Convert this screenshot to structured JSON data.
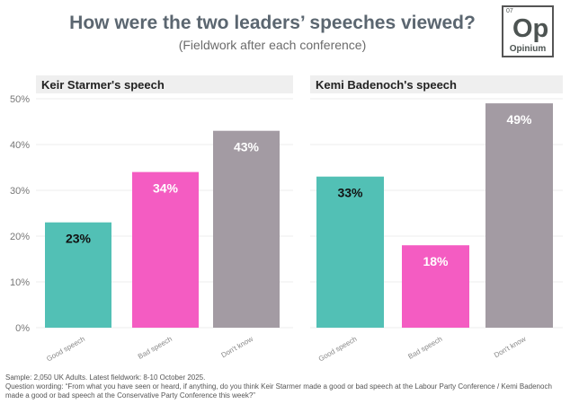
{
  "title": "How were the two leaders’ speeches viewed?",
  "subtitle": "(Fieldwork after each conference)",
  "logo": {
    "number": "07",
    "mark": "Op",
    "name": "Opinium"
  },
  "footer": {
    "sample": "Sample: 2,050 UK Adults. Latest fieldwork: 8-10 October 2025.",
    "question": "Question wording: “From what you have seen or heard, if anything, do you think Keir Starmer made a good or bad speech at the Labour Party Conference / Kemi Badenoch made a good or bad speech at the Conservative Party Conference this week?”"
  },
  "chart_data": [
    {
      "type": "bar",
      "title": "Keir Starmer's speech",
      "categories": [
        "Good speech",
        "Bad speech",
        "Don't know"
      ],
      "values": [
        23,
        34,
        43
      ],
      "data_labels": [
        "23%",
        "34%",
        "43%"
      ],
      "colors": [
        "#52c0b5",
        "#f45cc2",
        "#a39ba3"
      ],
      "ylim": [
        0,
        50
      ],
      "yticks": [
        "0%",
        "10%",
        "20%",
        "30%",
        "40%",
        "50%"
      ],
      "grid": true
    },
    {
      "type": "bar",
      "title": "Kemi Badenoch's speech",
      "categories": [
        "Good speech",
        "Bad speech",
        "Don't know"
      ],
      "values": [
        33,
        18,
        49
      ],
      "data_labels": [
        "33%",
        "18%",
        "49%"
      ],
      "colors": [
        "#52c0b5",
        "#f45cc2",
        "#a39ba3"
      ],
      "ylim": [
        0,
        50
      ],
      "grid": true
    }
  ]
}
